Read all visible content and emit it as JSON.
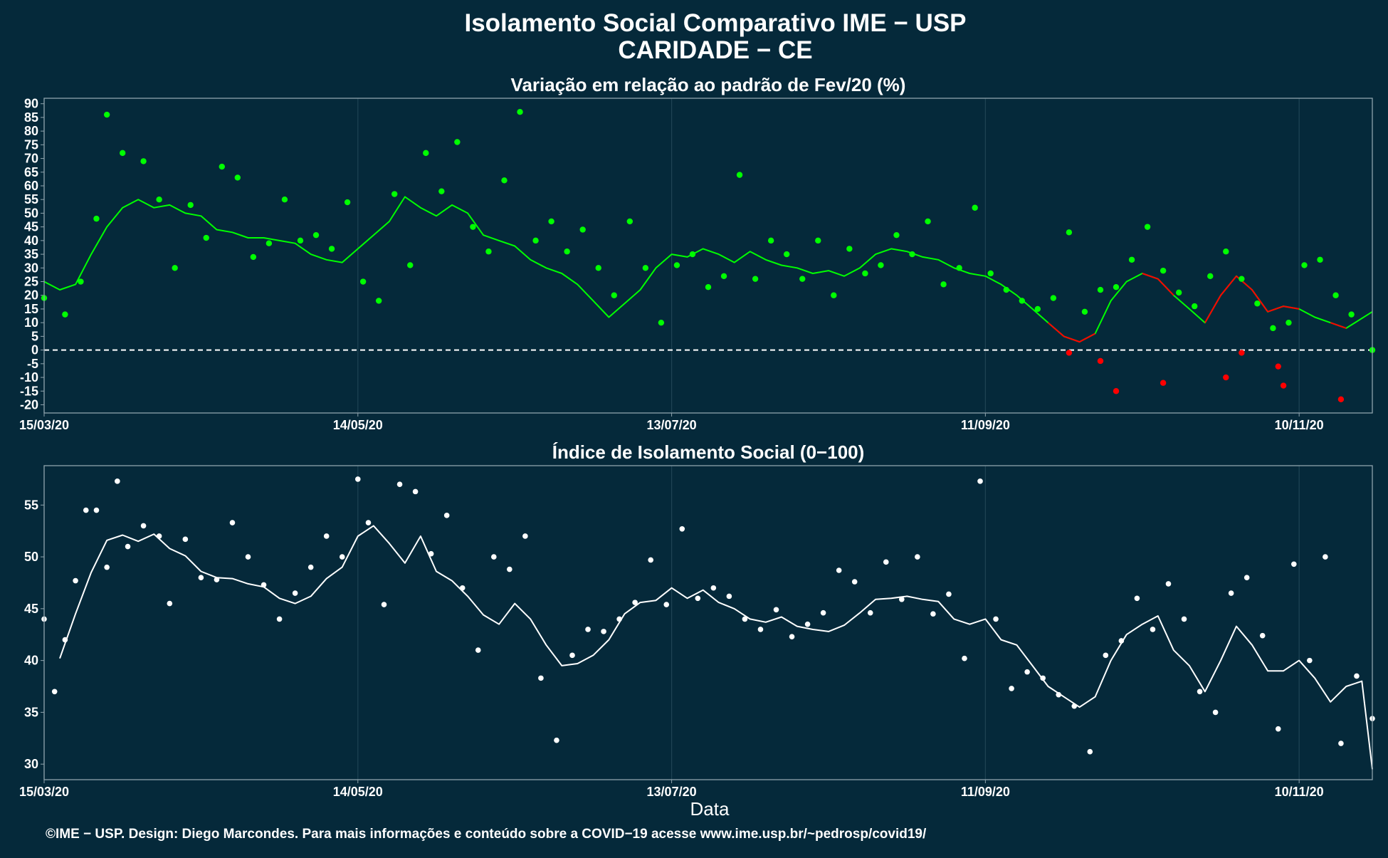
{
  "title": "Isolamento Social Comparativo IME − USP",
  "subtitle": "CARIDADE − CE",
  "xlabel": "Data",
  "footer": "©IME − USP. Design: Diego Marcondes. Para mais informações e conteúdo sobre a COVID−19 acesse www.ime.usp.br/~pedrosp/covid19/",
  "colors": {
    "background": "#05293a",
    "panel_border": "#8fa3ad",
    "grid": "#1f4454",
    "positive": "#00ff00",
    "negative": "#ff0000",
    "index_series": "#ffffff",
    "zero_line": "#ffffff"
  },
  "chart_data": [
    {
      "type": "scatter",
      "title": "Variação em relação ao padrão de Fev/20 (%)",
      "x_axis": {
        "range": [
          "2020-03-15",
          "2020-11-24"
        ],
        "ticks": [
          {
            "date": "2020-03-15",
            "label": "15/03/20"
          },
          {
            "date": "2020-05-14",
            "label": "14/05/20"
          },
          {
            "date": "2020-07-13",
            "label": "13/07/20"
          },
          {
            "date": "2020-09-11",
            "label": "11/09/20"
          },
          {
            "date": "2020-11-10",
            "label": "10/11/20"
          }
        ]
      },
      "ylim": [
        -23,
        92
      ],
      "yticks": [
        90,
        85,
        80,
        75,
        70,
        65,
        60,
        55,
        50,
        45,
        40,
        35,
        30,
        25,
        20,
        15,
        10,
        5,
        0,
        -5,
        -10,
        -15,
        -20
      ],
      "reference_line": {
        "y": 0,
        "style": "dashed"
      },
      "grid": true,
      "series": [
        {
          "name": "",
          "kind": "daily points",
          "x": [
            "2020-03-15",
            "2020-03-19",
            "2020-03-22",
            "2020-03-25",
            "2020-03-27",
            "2020-03-30",
            "2020-04-03",
            "2020-04-06",
            "2020-04-09",
            "2020-04-12",
            "2020-04-15",
            "2020-04-18",
            "2020-04-21",
            "2020-04-24",
            "2020-04-27",
            "2020-04-30",
            "2020-05-03",
            "2020-05-06",
            "2020-05-09",
            "2020-05-12",
            "2020-05-15",
            "2020-05-18",
            "2020-05-21",
            "2020-05-24",
            "2020-05-27",
            "2020-05-30",
            "2020-06-02",
            "2020-06-05",
            "2020-06-08",
            "2020-06-11",
            "2020-06-14",
            "2020-06-17",
            "2020-06-20",
            "2020-06-23",
            "2020-06-26",
            "2020-06-29",
            "2020-07-02",
            "2020-07-05",
            "2020-07-08",
            "2020-07-11",
            "2020-07-14",
            "2020-07-17",
            "2020-07-20",
            "2020-07-23",
            "2020-07-26",
            "2020-07-29",
            "2020-08-01",
            "2020-08-04",
            "2020-08-07",
            "2020-08-10",
            "2020-08-13",
            "2020-08-16",
            "2020-08-19",
            "2020-08-22",
            "2020-08-25",
            "2020-08-28",
            "2020-08-31",
            "2020-09-03",
            "2020-09-06",
            "2020-09-09",
            "2020-09-12",
            "2020-09-15",
            "2020-09-18",
            "2020-09-21",
            "2020-09-24",
            "2020-09-27",
            "2020-09-30",
            "2020-10-03",
            "2020-10-06",
            "2020-10-09",
            "2020-10-12",
            "2020-10-15",
            "2020-10-18",
            "2020-10-21",
            "2020-10-24",
            "2020-10-27",
            "2020-10-30",
            "2020-11-02",
            "2020-11-05",
            "2020-11-08",
            "2020-11-11",
            "2020-11-14",
            "2020-11-17",
            "2020-11-20",
            "2020-11-24"
          ],
          "y": [
            19,
            13,
            25,
            48,
            86,
            72,
            69,
            55,
            30,
            53,
            41,
            67,
            63,
            34,
            39,
            55,
            40,
            42,
            37,
            54,
            25,
            18,
            57,
            31,
            72,
            58,
            76,
            45,
            36,
            62,
            87,
            40,
            47,
            36,
            44,
            30,
            20,
            47,
            30,
            10,
            31,
            35,
            23,
            27,
            64,
            26,
            40,
            35,
            26,
            40,
            20,
            37,
            28,
            31,
            42,
            35,
            47,
            24,
            30,
            52,
            28,
            22,
            18,
            15,
            19,
            43,
            14,
            22,
            23,
            33,
            45,
            29,
            21,
            16,
            27,
            36,
            26,
            17,
            8,
            10,
            31,
            33,
            20,
            13,
            0
          ],
          "negative_points": {
            "x": [
              "2020-09-27",
              "2020-10-03",
              "2020-10-06",
              "2020-10-15",
              "2020-10-27",
              "2020-10-30",
              "2020-11-06",
              "2020-11-07",
              "2020-11-18"
            ],
            "y": [
              -1,
              -4,
              -15,
              -12,
              -10,
              -1,
              -6,
              -13,
              -18
            ]
          }
        },
        {
          "name": "",
          "kind": "moving average line",
          "x": [
            "2020-03-15",
            "2020-03-18",
            "2020-03-21",
            "2020-03-24",
            "2020-03-27",
            "2020-03-30",
            "2020-04-02",
            "2020-04-05",
            "2020-04-08",
            "2020-04-11",
            "2020-04-14",
            "2020-04-17",
            "2020-04-20",
            "2020-04-23",
            "2020-04-26",
            "2020-04-29",
            "2020-05-02",
            "2020-05-05",
            "2020-05-08",
            "2020-05-11",
            "2020-05-14",
            "2020-05-17",
            "2020-05-20",
            "2020-05-23",
            "2020-05-26",
            "2020-05-29",
            "2020-06-01",
            "2020-06-04",
            "2020-06-07",
            "2020-06-10",
            "2020-06-13",
            "2020-06-16",
            "2020-06-19",
            "2020-06-22",
            "2020-06-25",
            "2020-06-28",
            "2020-07-01",
            "2020-07-04",
            "2020-07-07",
            "2020-07-10",
            "2020-07-13",
            "2020-07-16",
            "2020-07-19",
            "2020-07-22",
            "2020-07-25",
            "2020-07-28",
            "2020-07-31",
            "2020-08-03",
            "2020-08-06",
            "2020-08-09",
            "2020-08-12",
            "2020-08-15",
            "2020-08-18",
            "2020-08-21",
            "2020-08-24",
            "2020-08-27",
            "2020-08-30",
            "2020-09-02",
            "2020-09-05",
            "2020-09-08",
            "2020-09-11",
            "2020-09-14",
            "2020-09-17",
            "2020-09-20",
            "2020-09-23",
            "2020-09-26",
            "2020-09-29",
            "2020-10-02",
            "2020-10-05",
            "2020-10-08",
            "2020-10-11",
            "2020-10-14",
            "2020-10-17",
            "2020-10-20",
            "2020-10-23",
            "2020-10-26",
            "2020-10-29",
            "2020-11-01",
            "2020-11-04",
            "2020-11-07",
            "2020-11-10",
            "2020-11-13",
            "2020-11-16",
            "2020-11-19",
            "2020-11-24"
          ],
          "y": [
            25,
            22,
            24,
            35,
            45,
            52,
            55,
            52,
            53,
            50,
            49,
            44,
            43,
            41,
            41,
            40,
            39,
            35,
            33,
            32,
            37,
            42,
            47,
            56,
            52,
            49,
            53,
            50,
            42,
            40,
            38,
            33,
            30,
            28,
            24,
            18,
            12,
            17,
            22,
            30,
            35,
            34,
            37,
            35,
            32,
            36,
            33,
            31,
            30,
            28,
            29,
            27,
            30,
            35,
            37,
            36,
            34,
            33,
            30,
            28,
            27,
            24,
            20,
            15,
            10,
            5,
            3,
            6,
            18,
            25,
            28,
            26,
            20,
            15,
            10,
            20,
            27,
            22,
            14,
            16,
            15,
            12,
            10,
            8,
            14
          ],
          "negative_segments": [
            [
              "2020-09-26",
              "2020-09-29"
            ],
            [
              "2020-10-12",
              "2020-10-14"
            ],
            [
              "2020-10-24",
              "2020-10-27"
            ],
            [
              "2020-10-30",
              "2020-11-01"
            ],
            [
              "2020-11-07",
              "2020-11-09"
            ],
            [
              "2020-11-17",
              "2020-11-19"
            ]
          ]
        }
      ]
    },
    {
      "type": "scatter",
      "title": "Índice de Isolamento Social (0−100)",
      "x_axis": {
        "range": [
          "2020-03-15",
          "2020-11-24"
        ],
        "ticks": [
          {
            "date": "2020-03-15",
            "label": "15/03/20"
          },
          {
            "date": "2020-05-14",
            "label": "14/05/20"
          },
          {
            "date": "2020-07-13",
            "label": "13/07/20"
          },
          {
            "date": "2020-09-11",
            "label": "11/09/20"
          },
          {
            "date": "2020-11-10",
            "label": "10/11/20"
          }
        ]
      },
      "ylim": [
        28.5,
        58.8
      ],
      "yticks": [
        55,
        50,
        45,
        40,
        35,
        30
      ],
      "grid": true,
      "series": [
        {
          "name": "",
          "kind": "daily points",
          "x": [
            "2020-03-15",
            "2020-03-17",
            "2020-03-19",
            "2020-03-21",
            "2020-03-23",
            "2020-03-25",
            "2020-03-27",
            "2020-03-29",
            "2020-03-31",
            "2020-04-03",
            "2020-04-06",
            "2020-04-08",
            "2020-04-11",
            "2020-04-14",
            "2020-04-17",
            "2020-04-20",
            "2020-04-23",
            "2020-04-26",
            "2020-04-29",
            "2020-05-02",
            "2020-05-05",
            "2020-05-08",
            "2020-05-11",
            "2020-05-14",
            "2020-05-16",
            "2020-05-19",
            "2020-05-22",
            "2020-05-25",
            "2020-05-28",
            "2020-05-31",
            "2020-06-03",
            "2020-06-06",
            "2020-06-09",
            "2020-06-12",
            "2020-06-15",
            "2020-06-18",
            "2020-06-21",
            "2020-06-24",
            "2020-06-27",
            "2020-06-30",
            "2020-07-03",
            "2020-07-06",
            "2020-07-09",
            "2020-07-12",
            "2020-07-15",
            "2020-07-18",
            "2020-07-21",
            "2020-07-24",
            "2020-07-27",
            "2020-07-30",
            "2020-08-02",
            "2020-08-05",
            "2020-08-08",
            "2020-08-11",
            "2020-08-14",
            "2020-08-17",
            "2020-08-20",
            "2020-08-23",
            "2020-08-26",
            "2020-08-29",
            "2020-09-01",
            "2020-09-04",
            "2020-09-07",
            "2020-09-10",
            "2020-09-13",
            "2020-09-16",
            "2020-09-19",
            "2020-09-22",
            "2020-09-25",
            "2020-09-28",
            "2020-10-01",
            "2020-10-04",
            "2020-10-07",
            "2020-10-10",
            "2020-10-13",
            "2020-10-16",
            "2020-10-19",
            "2020-10-22",
            "2020-10-25",
            "2020-10-28",
            "2020-10-31",
            "2020-11-03",
            "2020-11-06",
            "2020-11-09",
            "2020-11-12",
            "2020-11-15",
            "2020-11-18",
            "2020-11-21",
            "2020-11-24"
          ],
          "y": [
            44,
            37,
            42,
            47.7,
            54.5,
            54.5,
            49,
            57.3,
            51,
            53,
            52,
            45.5,
            51.7,
            48,
            47.8,
            53.3,
            50,
            47.3,
            44,
            46.5,
            49,
            52,
            50,
            57.5,
            53.3,
            45.4,
            57,
            56.3,
            50.3,
            54,
            47,
            41,
            50,
            48.8,
            52,
            38.3,
            32.3,
            40.5,
            43,
            42.8,
            44,
            45.6,
            49.7,
            45.4,
            52.7,
            46,
            47,
            46.2,
            44,
            43,
            44.9,
            42.3,
            43.5,
            44.6,
            48.7,
            47.6,
            44.6,
            49.5,
            45.9,
            50,
            44.5,
            46.4,
            40.2,
            57.3,
            44,
            37.3,
            38.9,
            38.3,
            36.7,
            35.6,
            31.2,
            40.5,
            41.9,
            46,
            43,
            47.4,
            44,
            37,
            35,
            46.5,
            48,
            42.4,
            33.4,
            49.3,
            40,
            50,
            32,
            38.5,
            34.4
          ]
        },
        {
          "name": "",
          "kind": "moving average line",
          "x": [
            "2020-03-18",
            "2020-03-21",
            "2020-03-24",
            "2020-03-27",
            "2020-03-30",
            "2020-04-02",
            "2020-04-05",
            "2020-04-08",
            "2020-04-11",
            "2020-04-14",
            "2020-04-17",
            "2020-04-20",
            "2020-04-23",
            "2020-04-26",
            "2020-04-29",
            "2020-05-02",
            "2020-05-05",
            "2020-05-08",
            "2020-05-11",
            "2020-05-14",
            "2020-05-17",
            "2020-05-20",
            "2020-05-23",
            "2020-05-26",
            "2020-05-29",
            "2020-06-01",
            "2020-06-04",
            "2020-06-07",
            "2020-06-10",
            "2020-06-13",
            "2020-06-16",
            "2020-06-19",
            "2020-06-22",
            "2020-06-25",
            "2020-06-28",
            "2020-07-01",
            "2020-07-04",
            "2020-07-07",
            "2020-07-10",
            "2020-07-13",
            "2020-07-16",
            "2020-07-19",
            "2020-07-22",
            "2020-07-25",
            "2020-07-28",
            "2020-07-31",
            "2020-08-03",
            "2020-08-06",
            "2020-08-09",
            "2020-08-12",
            "2020-08-15",
            "2020-08-18",
            "2020-08-21",
            "2020-08-24",
            "2020-08-27",
            "2020-08-30",
            "2020-09-02",
            "2020-09-05",
            "2020-09-08",
            "2020-09-11",
            "2020-09-14",
            "2020-09-17",
            "2020-09-20",
            "2020-09-23",
            "2020-09-26",
            "2020-09-29",
            "2020-10-02",
            "2020-10-05",
            "2020-10-08",
            "2020-10-11",
            "2020-10-14",
            "2020-10-17",
            "2020-10-20",
            "2020-10-23",
            "2020-10-26",
            "2020-10-29",
            "2020-11-01",
            "2020-11-04",
            "2020-11-07",
            "2020-11-10",
            "2020-11-13",
            "2020-11-16",
            "2020-11-19",
            "2020-11-22",
            "2020-11-24"
          ],
          "y": [
            40.2,
            44.5,
            48.5,
            51.6,
            52.1,
            51.5,
            52.2,
            50.8,
            50.1,
            48.6,
            48.0,
            47.9,
            47.4,
            47.1,
            46.0,
            45.5,
            46.2,
            47.9,
            49.0,
            52.0,
            53.0,
            51.3,
            49.4,
            52.0,
            48.6,
            47.7,
            46.2,
            44.4,
            43.5,
            45.5,
            44.0,
            41.5,
            39.5,
            39.7,
            40.5,
            42.0,
            44.5,
            45.6,
            45.8,
            47.0,
            46.0,
            46.8,
            45.6,
            45.0,
            44.0,
            43.7,
            44.2,
            43.3,
            43.0,
            42.8,
            43.4,
            44.6,
            45.9,
            46.0,
            46.2,
            45.9,
            45.7,
            44.0,
            43.5,
            44.0,
            42.0,
            41.5,
            39.5,
            37.5,
            36.5,
            35.5,
            36.5,
            40.0,
            42.5,
            43.5,
            44.3,
            41.0,
            39.5,
            37.0,
            40.0,
            43.3,
            41.5,
            39.0,
            39.0,
            40.0,
            38.3,
            36.0,
            37.5,
            38.0,
            29.5
          ]
        }
      ]
    }
  ]
}
